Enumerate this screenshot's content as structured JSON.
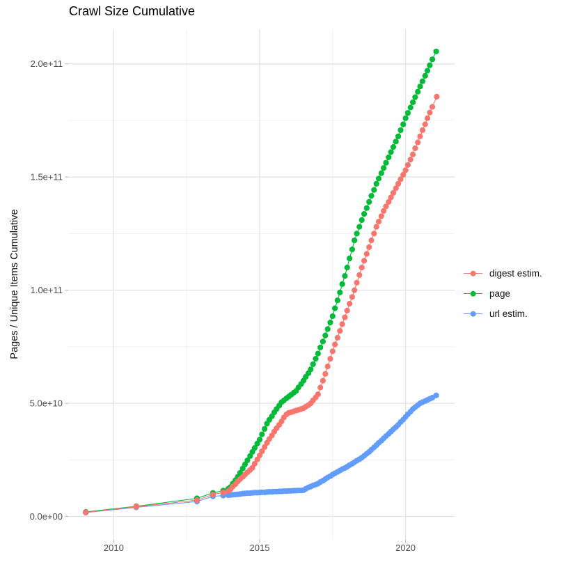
{
  "chart_data": {
    "type": "line",
    "title": "Crawl Size Cumulative",
    "xlabel": "",
    "ylabel": "Pages / Unique Items Cumulative",
    "y_unit": "value column is billions (1e9) of pages / unique items",
    "grid": true,
    "legend_position": "right-center",
    "point_style": "filled circles (~8px) connected by thin lines, roughly monthly cadence from 2014, sparse before",
    "xlim": [
      2008.44,
      2021.68
    ],
    "ylim": [
      -10.3,
      215.3
    ],
    "x_ticks": {
      "major": [
        {
          "v": 2010,
          "label": "2010"
        },
        {
          "v": 2015,
          "label": "2015"
        },
        {
          "v": 2020,
          "label": "2020"
        }
      ],
      "minor": [
        2012.5,
        2017.5
      ]
    },
    "y_ticks": {
      "major": [
        {
          "v": 0,
          "label": "0.0e+00"
        },
        {
          "v": 50,
          "label": "5.0e+10"
        },
        {
          "v": 100,
          "label": "1.0e+11"
        },
        {
          "v": 150,
          "label": "1.5e+11"
        },
        {
          "v": 200,
          "label": "2.0e+11"
        }
      ],
      "minor": [
        25,
        75,
        125,
        175
      ]
    },
    "draw_order": [
      2,
      1,
      0
    ],
    "series": [
      {
        "name": "digest estim.",
        "color": "#F8766D",
        "points": [
          [
            2009.04,
            1.8
          ],
          [
            2010.77,
            4.3
          ],
          [
            2012.85,
            7.2
          ],
          [
            2013.4,
            9.7
          ],
          [
            2013.75,
            10.6
          ],
          [
            2013.92,
            11.2
          ],
          [
            2014.0,
            12.0
          ],
          [
            2014.08,
            13.2
          ],
          [
            2014.17,
            14.3
          ],
          [
            2014.25,
            15.5
          ],
          [
            2014.33,
            16.5
          ],
          [
            2014.42,
            17.5
          ],
          [
            2014.5,
            18.5
          ],
          [
            2014.58,
            19.5
          ],
          [
            2014.67,
            20.5
          ],
          [
            2014.75,
            21.5
          ],
          [
            2014.83,
            23.3
          ],
          [
            2014.92,
            25.2
          ],
          [
            2015.0,
            27.0
          ],
          [
            2015.08,
            28.8
          ],
          [
            2015.17,
            30.7
          ],
          [
            2015.25,
            32.5
          ],
          [
            2015.33,
            34.2
          ],
          [
            2015.42,
            35.8
          ],
          [
            2015.5,
            37.5
          ],
          [
            2015.58,
            39.0
          ],
          [
            2015.67,
            40.5
          ],
          [
            2015.75,
            42.0
          ],
          [
            2015.83,
            43.7
          ],
          [
            2015.92,
            45.1
          ],
          [
            2016.0,
            45.8
          ],
          [
            2016.08,
            46.1
          ],
          [
            2016.17,
            46.5
          ],
          [
            2016.25,
            46.8
          ],
          [
            2016.33,
            47.1
          ],
          [
            2016.42,
            47.5
          ],
          [
            2016.5,
            47.8
          ],
          [
            2016.58,
            48.5
          ],
          [
            2016.67,
            49.2
          ],
          [
            2016.75,
            50.0
          ],
          [
            2016.83,
            51.3
          ],
          [
            2016.92,
            52.6
          ],
          [
            2017.0,
            54.0
          ],
          [
            2017.08,
            57.0
          ],
          [
            2017.17,
            60.0
          ],
          [
            2017.25,
            63.0
          ],
          [
            2017.33,
            66.3
          ],
          [
            2017.42,
            69.7
          ],
          [
            2017.5,
            73.0
          ],
          [
            2017.58,
            76.0
          ],
          [
            2017.67,
            79.0
          ],
          [
            2017.75,
            82.0
          ],
          [
            2017.83,
            85.0
          ],
          [
            2017.92,
            88.0
          ],
          [
            2018.0,
            91.0
          ],
          [
            2018.08,
            94.0
          ],
          [
            2018.17,
            97.0
          ],
          [
            2018.25,
            100.0
          ],
          [
            2018.33,
            103.3
          ],
          [
            2018.42,
            106.7
          ],
          [
            2018.5,
            110.0
          ],
          [
            2018.58,
            113.0
          ],
          [
            2018.67,
            116.0
          ],
          [
            2018.75,
            119.0
          ],
          [
            2018.83,
            122.0
          ],
          [
            2018.92,
            125.0
          ],
          [
            2019.0,
            128.0
          ],
          [
            2019.08,
            130.3
          ],
          [
            2019.17,
            132.7
          ],
          [
            2019.25,
            135.0
          ],
          [
            2019.33,
            137.0
          ],
          [
            2019.42,
            139.0
          ],
          [
            2019.5,
            141.0
          ],
          [
            2019.58,
            143.0
          ],
          [
            2019.67,
            145.0
          ],
          [
            2019.75,
            147.0
          ],
          [
            2019.83,
            149.0
          ],
          [
            2019.92,
            151.0
          ],
          [
            2020.0,
            153.0
          ],
          [
            2020.08,
            155.3
          ],
          [
            2020.17,
            157.7
          ],
          [
            2020.25,
            160.0
          ],
          [
            2020.33,
            162.7
          ],
          [
            2020.42,
            165.3
          ],
          [
            2020.5,
            168.0
          ],
          [
            2020.58,
            170.7
          ],
          [
            2020.67,
            173.3
          ],
          [
            2020.75,
            176.0
          ],
          [
            2020.83,
            178.5
          ],
          [
            2020.92,
            181.0
          ],
          [
            2021.07,
            185.5
          ]
        ]
      },
      {
        "name": "page",
        "color": "#00BA38",
        "points": [
          [
            2009.04,
            2.0
          ],
          [
            2010.77,
            4.5
          ],
          [
            2012.85,
            8.0
          ],
          [
            2013.4,
            10.4
          ],
          [
            2013.75,
            11.4
          ],
          [
            2013.92,
            12.2
          ],
          [
            2014.0,
            13.0
          ],
          [
            2014.08,
            14.5
          ],
          [
            2014.17,
            16.0
          ],
          [
            2014.25,
            17.5
          ],
          [
            2014.33,
            19.3
          ],
          [
            2014.42,
            21.2
          ],
          [
            2014.5,
            23.0
          ],
          [
            2014.58,
            24.8
          ],
          [
            2014.67,
            26.7
          ],
          [
            2014.75,
            28.5
          ],
          [
            2014.83,
            30.3
          ],
          [
            2014.92,
            32.2
          ],
          [
            2015.0,
            34.0
          ],
          [
            2015.08,
            36.3
          ],
          [
            2015.17,
            38.7
          ],
          [
            2015.25,
            41.0
          ],
          [
            2015.33,
            42.7
          ],
          [
            2015.42,
            44.3
          ],
          [
            2015.5,
            46.0
          ],
          [
            2015.58,
            47.5
          ],
          [
            2015.67,
            49.0
          ],
          [
            2015.75,
            50.5
          ],
          [
            2015.83,
            51.3
          ],
          [
            2015.92,
            52.2
          ],
          [
            2016.0,
            53.0
          ],
          [
            2016.08,
            53.8
          ],
          [
            2016.17,
            54.7
          ],
          [
            2016.25,
            55.5
          ],
          [
            2016.33,
            57.0
          ],
          [
            2016.42,
            58.5
          ],
          [
            2016.5,
            60.0
          ],
          [
            2016.58,
            61.7
          ],
          [
            2016.67,
            63.3
          ],
          [
            2016.75,
            65.0
          ],
          [
            2016.83,
            67.3
          ],
          [
            2016.92,
            69.7
          ],
          [
            2017.0,
            72.0
          ],
          [
            2017.08,
            74.7
          ],
          [
            2017.17,
            77.3
          ],
          [
            2017.25,
            80.0
          ],
          [
            2017.33,
            82.8
          ],
          [
            2017.42,
            85.7
          ],
          [
            2017.5,
            88.5
          ],
          [
            2017.58,
            92.0
          ],
          [
            2017.67,
            95.5
          ],
          [
            2017.75,
            99.0
          ],
          [
            2017.83,
            102.7
          ],
          [
            2017.92,
            106.3
          ],
          [
            2018.0,
            110.0
          ],
          [
            2018.08,
            114.0
          ],
          [
            2018.17,
            118.0
          ],
          [
            2018.25,
            122.0
          ],
          [
            2018.33,
            125.0
          ],
          [
            2018.42,
            128.0
          ],
          [
            2018.5,
            131.0
          ],
          [
            2018.58,
            133.7
          ],
          [
            2018.67,
            136.3
          ],
          [
            2018.75,
            139.0
          ],
          [
            2018.83,
            141.7
          ],
          [
            2018.92,
            144.3
          ],
          [
            2019.0,
            147.0
          ],
          [
            2019.08,
            149.3
          ],
          [
            2019.17,
            151.7
          ],
          [
            2019.25,
            154.0
          ],
          [
            2019.33,
            156.3
          ],
          [
            2019.42,
            158.7
          ],
          [
            2019.5,
            161.0
          ],
          [
            2019.58,
            163.3
          ],
          [
            2019.67,
            165.7
          ],
          [
            2019.75,
            168.0
          ],
          [
            2019.83,
            170.7
          ],
          [
            2019.92,
            173.3
          ],
          [
            2020.0,
            176.0
          ],
          [
            2020.08,
            178.3
          ],
          [
            2020.17,
            180.7
          ],
          [
            2020.25,
            183.0
          ],
          [
            2020.33,
            185.3
          ],
          [
            2020.42,
            187.7
          ],
          [
            2020.5,
            190.0
          ],
          [
            2020.58,
            192.3
          ],
          [
            2020.67,
            194.7
          ],
          [
            2020.75,
            197.0
          ],
          [
            2020.83,
            199.4
          ],
          [
            2020.92,
            202.0
          ],
          [
            2021.05,
            205.5
          ]
        ]
      },
      {
        "name": "url estim.",
        "color": "#619CFF",
        "points": [
          [
            2009.04,
            1.7
          ],
          [
            2010.77,
            4.0
          ],
          [
            2012.85,
            6.6
          ],
          [
            2013.4,
            8.9
          ],
          [
            2013.75,
            9.2
          ],
          [
            2013.92,
            9.4
          ],
          [
            2014.0,
            9.5
          ],
          [
            2014.08,
            9.6
          ],
          [
            2014.17,
            9.7
          ],
          [
            2014.25,
            9.8
          ],
          [
            2014.33,
            9.9
          ],
          [
            2014.42,
            10.1
          ],
          [
            2014.5,
            10.2
          ],
          [
            2014.58,
            10.3
          ],
          [
            2014.67,
            10.3
          ],
          [
            2014.75,
            10.4
          ],
          [
            2014.83,
            10.5
          ],
          [
            2014.92,
            10.5
          ],
          [
            2015.0,
            10.6
          ],
          [
            2015.08,
            10.7
          ],
          [
            2015.17,
            10.7
          ],
          [
            2015.25,
            10.8
          ],
          [
            2015.33,
            10.9
          ],
          [
            2015.42,
            10.9
          ],
          [
            2015.5,
            11.0
          ],
          [
            2015.58,
            11.0
          ],
          [
            2015.67,
            11.1
          ],
          [
            2015.75,
            11.1
          ],
          [
            2015.83,
            11.2
          ],
          [
            2015.92,
            11.2
          ],
          [
            2016.0,
            11.3
          ],
          [
            2016.08,
            11.3
          ],
          [
            2016.17,
            11.4
          ],
          [
            2016.25,
            11.4
          ],
          [
            2016.33,
            11.5
          ],
          [
            2016.42,
            11.5
          ],
          [
            2016.5,
            11.6
          ],
          [
            2016.58,
            12.2
          ],
          [
            2016.67,
            12.8
          ],
          [
            2016.75,
            13.2
          ],
          [
            2016.83,
            13.7
          ],
          [
            2016.92,
            14.1
          ],
          [
            2017.0,
            14.5
          ],
          [
            2017.08,
            15.2
          ],
          [
            2017.17,
            15.8
          ],
          [
            2017.25,
            16.5
          ],
          [
            2017.33,
            17.2
          ],
          [
            2017.42,
            17.8
          ],
          [
            2017.5,
            18.5
          ],
          [
            2017.58,
            19.1
          ],
          [
            2017.67,
            19.7
          ],
          [
            2017.75,
            20.3
          ],
          [
            2017.83,
            20.9
          ],
          [
            2017.92,
            21.4
          ],
          [
            2018.0,
            22.0
          ],
          [
            2018.08,
            22.7
          ],
          [
            2018.17,
            23.3
          ],
          [
            2018.25,
            24.0
          ],
          [
            2018.33,
            24.7
          ],
          [
            2018.42,
            25.3
          ],
          [
            2018.5,
            26.0
          ],
          [
            2018.58,
            26.8
          ],
          [
            2018.67,
            27.7
          ],
          [
            2018.75,
            28.5
          ],
          [
            2018.83,
            29.5
          ],
          [
            2018.92,
            30.5
          ],
          [
            2019.0,
            31.5
          ],
          [
            2019.08,
            32.5
          ],
          [
            2019.17,
            33.5
          ],
          [
            2019.25,
            34.5
          ],
          [
            2019.33,
            35.5
          ],
          [
            2019.42,
            36.5
          ],
          [
            2019.5,
            37.5
          ],
          [
            2019.58,
            38.5
          ],
          [
            2019.67,
            39.5
          ],
          [
            2019.75,
            40.5
          ],
          [
            2019.83,
            41.7
          ],
          [
            2019.92,
            42.8
          ],
          [
            2020.0,
            44.0
          ],
          [
            2020.08,
            45.2
          ],
          [
            2020.17,
            46.3
          ],
          [
            2020.25,
            47.5
          ],
          [
            2020.33,
            48.3
          ],
          [
            2020.42,
            49.2
          ],
          [
            2020.5,
            50.0
          ],
          [
            2020.58,
            50.5
          ],
          [
            2020.67,
            51.0
          ],
          [
            2020.75,
            51.5
          ],
          [
            2020.83,
            52.0
          ],
          [
            2020.92,
            52.5
          ],
          [
            2021.05,
            53.5
          ]
        ]
      }
    ]
  }
}
